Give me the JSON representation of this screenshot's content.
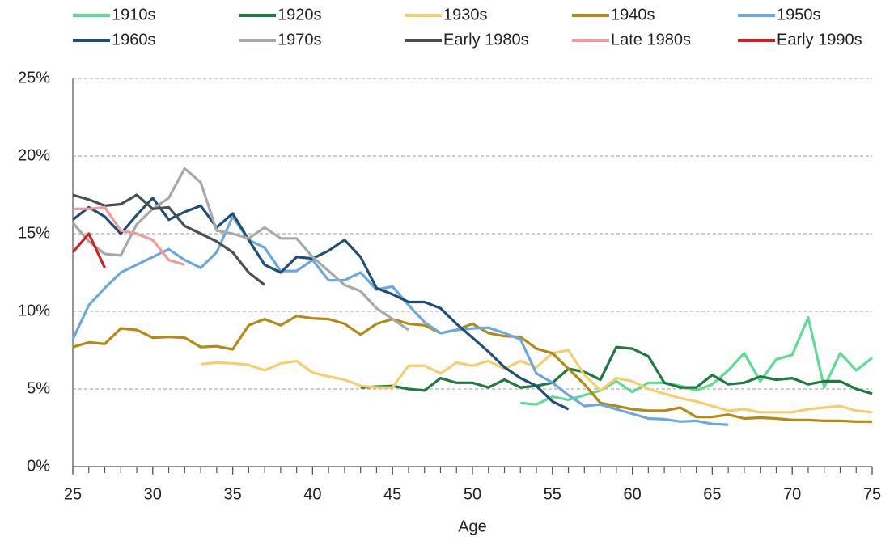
{
  "chart_data": {
    "type": "line",
    "x_label": "Age",
    "x": [
      25,
      26,
      27,
      28,
      29,
      30,
      31,
      32,
      33,
      34,
      35,
      36,
      37,
      38,
      39,
      40,
      41,
      42,
      43,
      44,
      45,
      46,
      47,
      48,
      49,
      50,
      51,
      52,
      53,
      54,
      55,
      56,
      57,
      58,
      59,
      60,
      61,
      62,
      63,
      64,
      65,
      66,
      67,
      68,
      69,
      70,
      71,
      72,
      73,
      74,
      75
    ],
    "xlim": [
      25,
      75
    ],
    "xticks": [
      25,
      30,
      35,
      40,
      45,
      50,
      55,
      60,
      65,
      70,
      75
    ],
    "ylim": [
      0,
      25
    ],
    "yticks": [
      {
        "value": 0,
        "label": "0%"
      },
      {
        "value": 5,
        "label": "5%"
      },
      {
        "value": 10,
        "label": "10%"
      },
      {
        "value": 15,
        "label": "15%"
      },
      {
        "value": 20,
        "label": "20%"
      },
      {
        "value": 25,
        "label": "25%"
      }
    ],
    "grid": true,
    "legend": "top",
    "series": [
      {
        "name": "1910s",
        "color": "#5ddc94",
        "values": [
          null,
          null,
          null,
          null,
          null,
          null,
          null,
          null,
          null,
          null,
          null,
          null,
          null,
          null,
          null,
          null,
          null,
          null,
          null,
          null,
          null,
          null,
          null,
          null,
          null,
          null,
          null,
          null,
          4.1,
          4.0,
          4.5,
          4.3,
          4.6,
          4.9,
          5.5,
          4.8,
          5.4,
          5.4,
          5.2,
          4.9,
          5.3,
          6.2,
          7.3,
          5.5,
          6.9,
          7.2,
          9.6,
          5.1,
          7.3,
          6.2,
          7.0
        ]
      },
      {
        "name": "1920s",
        "color": "#1e7a3e",
        "values": [
          null,
          null,
          null,
          null,
          null,
          null,
          null,
          null,
          null,
          null,
          null,
          null,
          null,
          null,
          null,
          null,
          null,
          null,
          5.1,
          5.15,
          5.2,
          5.0,
          4.9,
          5.7,
          5.4,
          5.4,
          5.1,
          5.6,
          5.1,
          5.2,
          5.4,
          6.3,
          6.1,
          5.6,
          7.7,
          7.6,
          7.1,
          5.4,
          5.1,
          5.1,
          5.9,
          5.3,
          5.4,
          5.8,
          5.6,
          5.7,
          5.3,
          5.5,
          5.5,
          5.0,
          4.7
        ]
      },
      {
        "name": "1930s",
        "color": "#f5cf6e",
        "values": [
          null,
          null,
          null,
          null,
          null,
          null,
          null,
          null,
          6.6,
          6.7,
          6.65,
          6.55,
          6.2,
          6.65,
          6.8,
          6.05,
          5.8,
          5.6,
          5.2,
          5.1,
          5.1,
          6.5,
          6.5,
          6.0,
          6.7,
          6.5,
          6.8,
          6.3,
          6.8,
          6.4,
          7.3,
          7.5,
          5.9,
          4.9,
          5.7,
          5.5,
          5.0,
          4.7,
          4.4,
          4.2,
          3.9,
          3.6,
          3.7,
          3.5,
          3.5,
          3.5,
          3.7,
          3.8,
          3.9,
          3.6,
          3.5
        ]
      },
      {
        "name": "1940s",
        "color": "#b58a13",
        "values": [
          7.7,
          8.0,
          7.9,
          8.9,
          8.8,
          8.3,
          8.35,
          8.3,
          7.7,
          7.75,
          7.55,
          9.1,
          9.5,
          9.1,
          9.7,
          9.55,
          9.5,
          9.2,
          8.5,
          9.2,
          9.5,
          9.2,
          9.1,
          8.6,
          8.8,
          9.2,
          8.6,
          8.4,
          8.35,
          7.6,
          7.3,
          6.3,
          5.3,
          4.1,
          3.9,
          3.7,
          3.6,
          3.6,
          3.8,
          3.2,
          3.2,
          3.35,
          3.1,
          3.15,
          3.1,
          3.0,
          3.0,
          2.95,
          2.95,
          2.9,
          2.9
        ]
      },
      {
        "name": "1950s",
        "color": "#6aa9e0",
        "values": [
          8.2,
          10.4,
          11.5,
          12.5,
          13.0,
          13.5,
          14.0,
          13.3,
          12.8,
          13.8,
          16.1,
          14.6,
          14.1,
          12.6,
          12.6,
          13.3,
          12.0,
          12.0,
          12.5,
          11.4,
          11.6,
          10.4,
          9.3,
          8.6,
          8.8,
          8.9,
          8.95,
          8.6,
          8.2,
          6.0,
          5.4,
          4.6,
          3.9,
          4.0,
          3.7,
          3.4,
          3.1,
          3.05,
          2.9,
          2.95,
          2.75,
          2.7,
          null,
          null,
          null,
          null,
          null,
          null,
          null,
          null,
          null
        ]
      },
      {
        "name": "1960s",
        "color": "#1f4e79",
        "values": [
          15.9,
          16.7,
          16.1,
          15.0,
          16.2,
          17.3,
          15.9,
          16.4,
          16.8,
          15.4,
          16.3,
          14.6,
          13.0,
          12.5,
          13.5,
          13.4,
          13.9,
          14.6,
          13.5,
          11.5,
          11.1,
          10.6,
          10.6,
          10.2,
          9.2,
          8.3,
          7.4,
          6.4,
          5.7,
          5.2,
          4.2,
          3.7,
          null,
          null,
          null,
          null,
          null,
          null,
          null,
          null,
          null,
          null,
          null,
          null,
          null,
          null,
          null,
          null,
          null,
          null,
          null
        ]
      },
      {
        "name": "1970s",
        "color": "#a6a9aa",
        "values": [
          15.7,
          14.5,
          13.7,
          13.6,
          15.6,
          16.6,
          17.3,
          19.2,
          18.3,
          15.2,
          15.0,
          14.7,
          15.4,
          14.7,
          14.7,
          13.5,
          12.6,
          11.7,
          11.3,
          10.2,
          9.5,
          8.8,
          null,
          null,
          null,
          null,
          null,
          null,
          null,
          null,
          null,
          null,
          null,
          null,
          null,
          null,
          null,
          null,
          null,
          null,
          null,
          null,
          null,
          null,
          null,
          null,
          null,
          null,
          null,
          null,
          null
        ]
      },
      {
        "name": "Early 1980s",
        "color": "#4a4f52",
        "values": [
          17.5,
          17.2,
          16.8,
          16.9,
          17.5,
          16.6,
          16.7,
          15.5,
          15.0,
          14.5,
          13.8,
          12.5,
          11.7,
          null,
          null,
          null,
          null,
          null,
          null,
          null,
          null,
          null,
          null,
          null,
          null,
          null,
          null,
          null,
          null,
          null,
          null,
          null,
          null,
          null,
          null,
          null,
          null,
          null,
          null,
          null,
          null,
          null,
          null,
          null,
          null,
          null,
          null,
          null,
          null,
          null,
          null
        ]
      },
      {
        "name": "Late 1980s",
        "color": "#f19a9a",
        "values": [
          16.6,
          16.6,
          16.7,
          15.2,
          15.0,
          14.6,
          13.3,
          13.0,
          null,
          null,
          null,
          null,
          null,
          null,
          null,
          null,
          null,
          null,
          null,
          null,
          null,
          null,
          null,
          null,
          null,
          null,
          null,
          null,
          null,
          null,
          null,
          null,
          null,
          null,
          null,
          null,
          null,
          null,
          null,
          null,
          null,
          null,
          null,
          null,
          null,
          null,
          null,
          null,
          null,
          null,
          null
        ]
      },
      {
        "name": "Early 1990s",
        "color": "#d0201f",
        "values": [
          13.8,
          15.0,
          12.8,
          null,
          null,
          null,
          null,
          null,
          null,
          null,
          null,
          null,
          null,
          null,
          null,
          null,
          null,
          null,
          null,
          null,
          null,
          null,
          null,
          null,
          null,
          null,
          null,
          null,
          null,
          null,
          null,
          null,
          null,
          null,
          null,
          null,
          null,
          null,
          null,
          null,
          null,
          null,
          null,
          null,
          null,
          null,
          null,
          null,
          null,
          null,
          null
        ]
      }
    ]
  }
}
